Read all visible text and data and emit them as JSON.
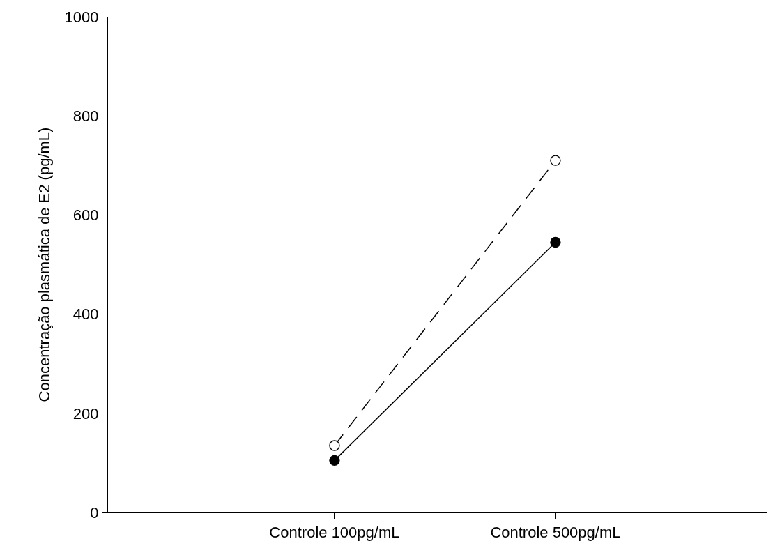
{
  "chart_data": {
    "type": "line",
    "ylabel": "Concentração plasmática de E2 (pg/mL)",
    "categories": [
      "Controle 100pg/mL",
      "Controle 500pg/mL"
    ],
    "series": [
      {
        "color": "#000000",
        "values": [
          135,
          710
        ],
        "line_style": "dashed"
      },
      {
        "color": "#000000",
        "values": [
          105,
          545
        ],
        "line_style": "solid"
      }
    ],
    "ylim": [
      0,
      1000
    ],
    "yticks": [
      0,
      200,
      400,
      600,
      800,
      1000
    ],
    "marker": "circle"
  }
}
